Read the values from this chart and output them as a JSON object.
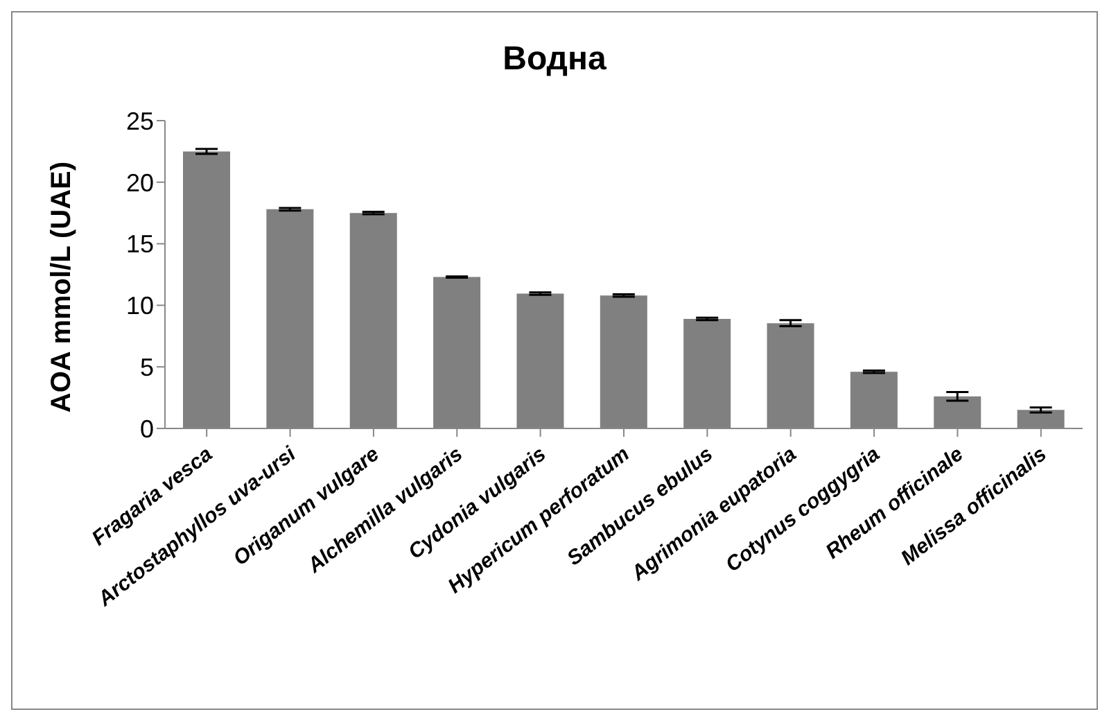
{
  "chart_data": {
    "type": "bar",
    "title": "Водна",
    "ylabel": "AOA mmol/L (UAE)",
    "categories": [
      "Fragaria vesca",
      "Arctostaphyllos uva-ursi",
      "Origanum vulgare",
      "Alchemilla vulgaris",
      "Cydonia vulgaris",
      "Hypericum perforatum",
      "Sambucus ebulus",
      "Agrimonia eupatoria",
      "Cotynus coggygria",
      "Rheum officinale",
      "Melissa officinalis"
    ],
    "values": [
      22.5,
      17.8,
      17.5,
      12.3,
      10.95,
      10.8,
      8.9,
      8.55,
      4.6,
      2.6,
      1.5
    ],
    "errors": [
      0.2,
      0.1,
      0.1,
      0.05,
      0.1,
      0.1,
      0.1,
      0.25,
      0.1,
      0.35,
      0.2
    ],
    "color": "#808080",
    "ylim": [
      0,
      25
    ],
    "yticks": [
      0,
      5,
      10,
      15,
      20,
      25
    ],
    "grid": false,
    "legend": false
  }
}
